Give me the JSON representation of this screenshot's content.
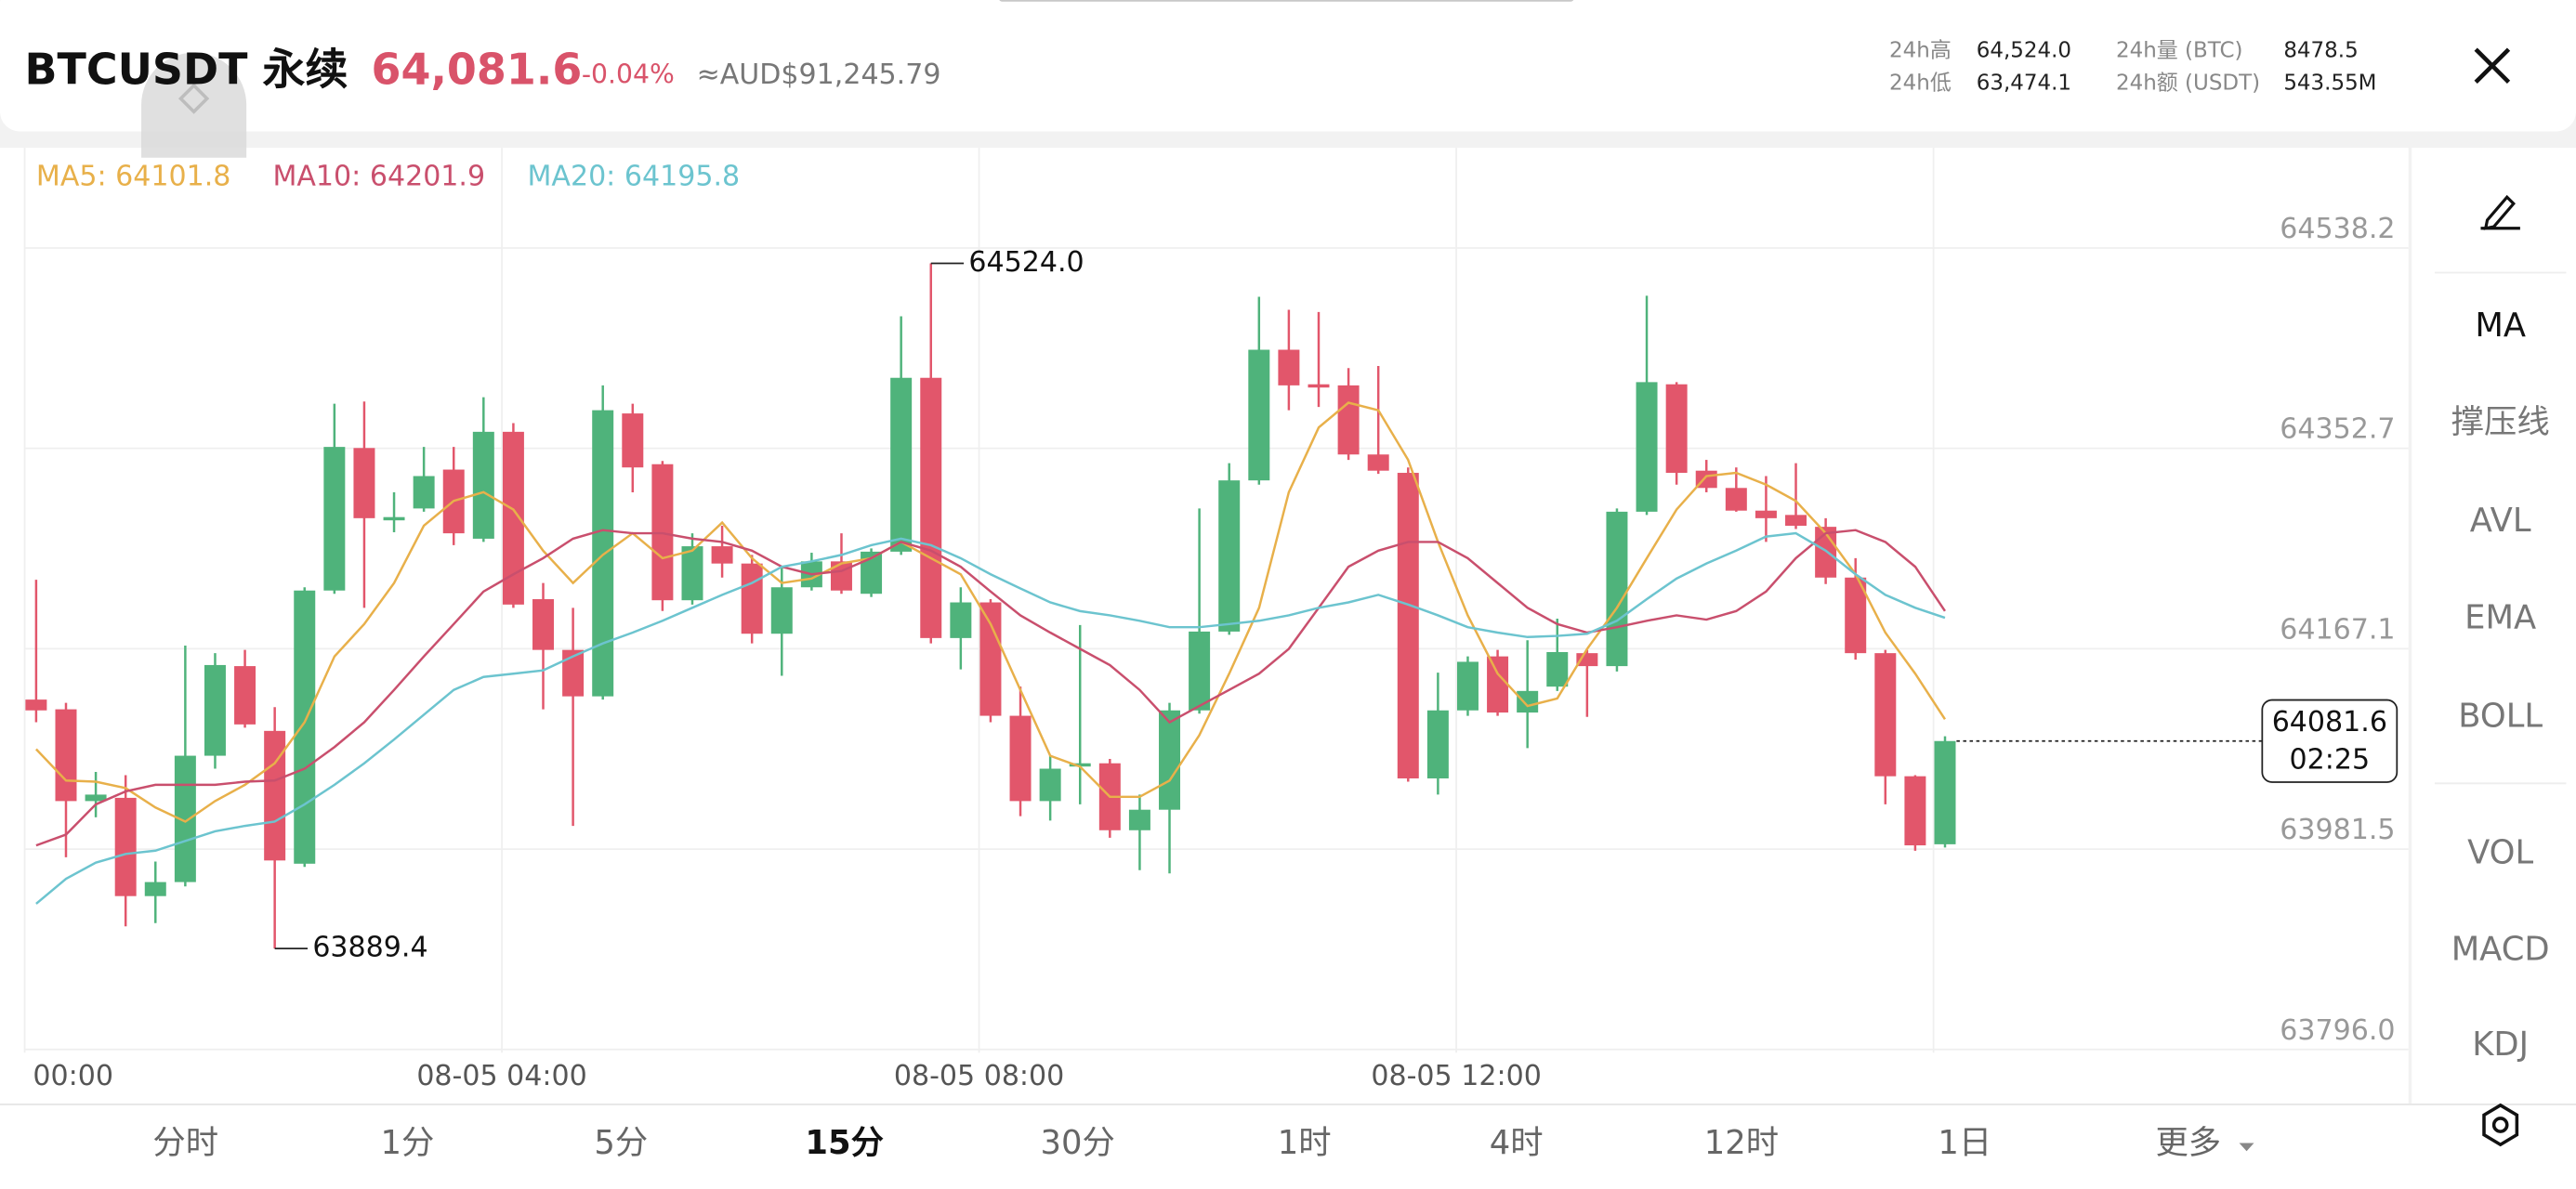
{
  "header": {
    "symbol": "BTCUSDT 永续",
    "price": "64,081.6",
    "change": "-0.04%",
    "converted": "≈AUD$91,245.79",
    "stats": [
      {
        "label": "24h高",
        "value": "64,524.0"
      },
      {
        "label": "24h低",
        "value": "63,474.1"
      },
      {
        "label": "24h量 (BTC)",
        "value": "8478.5"
      },
      {
        "label": "24h额 (USDT)",
        "value": "543.55M"
      }
    ]
  },
  "chart_data": {
    "type": "candlestick",
    "up_color": "#4fb37b",
    "down_color": "#e2566b",
    "categories": [
      "00:00",
      null,
      null,
      null,
      null,
      null,
      null,
      null,
      null,
      null,
      null,
      null,
      null,
      null,
      null,
      null,
      "08-05 04:00",
      null,
      null,
      null,
      null,
      null,
      null,
      null,
      null,
      null,
      null,
      null,
      null,
      null,
      null,
      null,
      "08-05 08:00",
      null,
      null,
      null,
      null,
      null,
      null,
      null,
      null,
      null,
      null,
      null,
      null,
      null,
      null,
      null,
      "08-05 12:00",
      null,
      null,
      null,
      null,
      null,
      null,
      null,
      null,
      null,
      null,
      null,
      null,
      null,
      null,
      null,
      null
    ],
    "open": [
      64120,
      64111,
      64026,
      64029,
      63938,
      63951,
      64068,
      64151,
      64091,
      63968,
      64221,
      64353,
      64286,
      64297,
      64333,
      64269,
      64368,
      64213,
      64166,
      64123,
      64385,
      64338,
      64212,
      64262,
      64246,
      64181,
      64224,
      64248,
      64218,
      64257,
      64418,
      64177,
      64210,
      64105,
      64026,
      64058,
      64061,
      63999,
      64018,
      64110,
      64183,
      64323,
      64444,
      64412,
      64411,
      64347,
      64330,
      64047,
      64110,
      64160,
      64108,
      64132,
      64163,
      64151,
      64294,
      64412,
      64332,
      64316,
      64295,
      64291,
      64280,
      64233,
      64163,
      64049,
      63986
    ],
    "high": [
      64231,
      64117,
      64053,
      64050,
      63970,
      64170,
      64163,
      64166,
      64113,
      64224,
      64394,
      64396,
      64312,
      64354,
      64354,
      64400,
      64376,
      64228,
      64205,
      64411,
      64394,
      64341,
      64274,
      64281,
      64254,
      64243,
      64256,
      64274,
      64260,
      64475,
      64524.0,
      64224,
      64213,
      64132,
      64068,
      64189,
      64065,
      64032,
      64117,
      64297,
      64339,
      64493,
      64481,
      64479,
      64427,
      64429,
      64335,
      64145,
      64160,
      64166,
      64175,
      64195,
      64166,
      64297,
      64494,
      64414,
      64342,
      64335,
      64327,
      64339,
      64288,
      64251,
      64166,
      64050,
      64086
    ],
    "low": [
      64099,
      63974,
      64011,
      63910,
      63913,
      63947,
      64056,
      64094,
      63889.4,
      63965,
      64218,
      64205,
      64275,
      64294,
      64263,
      64266,
      64205,
      64111,
      64003,
      64120,
      64312,
      64202,
      64208,
      64233,
      64172,
      64142,
      64221,
      64218,
      64215,
      64254,
      64172,
      64148,
      64099,
      64012,
      64008,
      64023,
      63992,
      63962,
      63959,
      64107,
      64180,
      64319,
      64388,
      64391,
      64342,
      64329,
      64044,
      64032,
      64105,
      64105,
      64075,
      64128,
      64104,
      64146,
      64291,
      64319,
      64312,
      64294,
      64266,
      64278,
      64227,
      64157,
      64023,
      63980,
      63983
    ],
    "close": [
      64110,
      64026,
      64032,
      63938,
      63951,
      64068,
      64152,
      64097,
      63971,
      64221,
      64354,
      64288,
      64289,
      64327,
      64274,
      64368,
      64208,
      64166,
      64123,
      64388,
      64335,
      64212,
      64262,
      64246,
      64181,
      64224,
      64248,
      64221,
      64257,
      64418,
      64177,
      64210,
      64105,
      64026,
      64056,
      64061,
      63999,
      64018,
      64110,
      64183,
      64323,
      64444,
      64411,
      64409,
      64347,
      64332,
      64047,
      64110,
      64155,
      64108,
      64128,
      64164,
      64151,
      64294,
      64414,
      64330,
      64316,
      64295,
      64288,
      64281,
      64233,
      64163,
      64049,
      63985,
      64081.6
    ],
    "series": [
      {
        "name": "MA5: 64101.8",
        "color": "#e8b04a",
        "values": [
          64074,
          64045,
          64044,
          64038,
          64020,
          64007,
          64026,
          64041,
          64061,
          64099,
          64160,
          64190,
          64228,
          64281,
          64304,
          64312,
          64296,
          64258,
          64228,
          64254,
          64274,
          64251,
          64258,
          64284,
          64251,
          64228,
          64232,
          64246,
          64251,
          64266,
          64251,
          64236,
          64190,
          64129,
          64068,
          64058,
          64030,
          64030,
          64045,
          64087,
          64144,
          64205,
          64312,
          64372,
          64395,
          64388,
          64342,
          64266,
          64198,
          64144,
          64114,
          64121,
          64167,
          64205,
          64251,
          64296,
          64327,
          64330,
          64319,
          64304,
          64274,
          64236,
          64182,
          64144,
          64101.8
        ]
      },
      {
        "name": "MA10: 64201.9",
        "color": "#c94f6d",
        "values": [
          63985,
          63995,
          64023,
          64035,
          64041,
          64041,
          64041,
          64044,
          64045,
          64056,
          64076,
          64099,
          64129,
          64160,
          64190,
          64220,
          64236,
          64251,
          64269,
          64277,
          64274,
          64274,
          64269,
          64266,
          64258,
          64243,
          64236,
          64239,
          64251,
          64266,
          64258,
          64243,
          64220,
          64198,
          64182,
          64167,
          64152,
          64129,
          64099,
          64114,
          64129,
          64144,
          64167,
          64205,
          64243,
          64258,
          64266,
          64266,
          64251,
          64228,
          64205,
          64190,
          64182,
          64187,
          64193,
          64198,
          64194,
          64202,
          64220,
          64251,
          64274,
          64277,
          64266,
          64243,
          64201.9
        ]
      },
      {
        "name": "MA20: 64195.8",
        "color": "#6cc4cf",
        "values": [
          63931,
          63954,
          63969,
          63977,
          63980,
          63989,
          63998,
          64003,
          64007,
          64023,
          64041,
          64061,
          64083,
          64106,
          64129,
          64141,
          64144,
          64147,
          64160,
          64172,
          64182,
          64193,
          64205,
          64217,
          64228,
          64243,
          64248,
          64254,
          64263,
          64269,
          64263,
          64251,
          64236,
          64223,
          64210,
          64202,
          64198,
          64193,
          64187,
          64187,
          64190,
          64193,
          64198,
          64205,
          64210,
          64217,
          64208,
          64198,
          64187,
          64182,
          64178,
          64179,
          64181,
          64193,
          64213,
          64232,
          64246,
          64258,
          64271,
          64274,
          64258,
          64236,
          64217,
          64205,
          64195.8
        ]
      }
    ],
    "ylim": [
      63793,
      64631
    ],
    "yticks": [
      64538.2,
      64352.7,
      64167.1,
      63981.5,
      {
        "value": 63796.0,
        "label": "63796.0"
      }
    ],
    "grid": true,
    "high_label": "64524.0",
    "low_label": "63889.4",
    "last_price_label": "64081.6",
    "countdown": "02:25"
  },
  "intervals": {
    "items": [
      "分时",
      "1分",
      "5分",
      "15分",
      "30分",
      "1时",
      "4时",
      "12时",
      "1日",
      "更多"
    ],
    "active": 3
  },
  "indicators": {
    "items": [
      "MA",
      "撑压线",
      "AVL",
      "EMA",
      "BOLL",
      "VOL",
      "MACD",
      "KDJ"
    ],
    "active": 0
  }
}
